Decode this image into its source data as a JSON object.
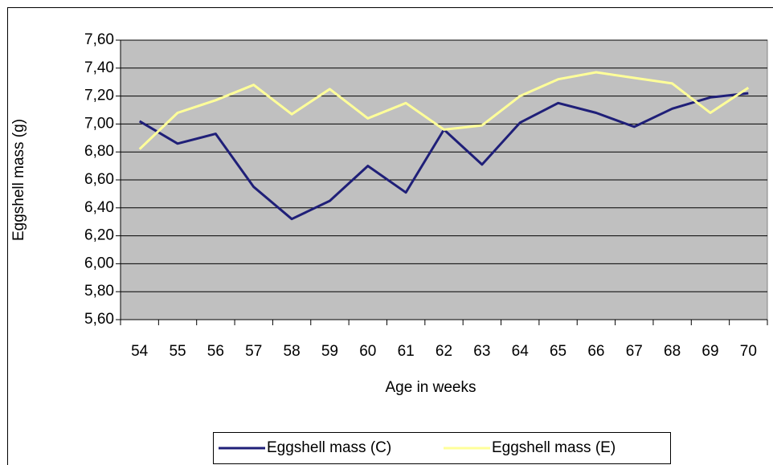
{
  "chart_data": {
    "type": "line",
    "categories": [
      "54",
      "55",
      "56",
      "57",
      "58",
      "59",
      "60",
      "61",
      "62",
      "63",
      "64",
      "65",
      "66",
      "67",
      "68",
      "69",
      "70"
    ],
    "series": [
      {
        "name": "Eggshell mass (C)",
        "color": "#1f1f78",
        "values": [
          7.02,
          6.86,
          6.93,
          6.55,
          6.32,
          6.45,
          6.7,
          6.51,
          6.96,
          6.71,
          7.01,
          7.15,
          7.08,
          6.98,
          7.11,
          7.19,
          7.22
        ]
      },
      {
        "name": "Eggshell mass (E)",
        "color": "#ffff99",
        "values": [
          6.82,
          7.08,
          7.17,
          7.28,
          7.07,
          7.25,
          7.04,
          7.15,
          6.96,
          6.99,
          7.2,
          7.32,
          7.37,
          7.33,
          7.29,
          7.08,
          7.26
        ]
      }
    ],
    "x_label": "Age in weeks",
    "y_label": "Eggshell mass (g)",
    "ylim": [
      5.6,
      7.6
    ],
    "yticks": [
      {
        "value": 5.6,
        "label": "5,60"
      },
      {
        "value": 5.8,
        "label": "5,80"
      },
      {
        "value": 6.0,
        "label": "6,00"
      },
      {
        "value": 6.2,
        "label": "6,20"
      },
      {
        "value": 6.4,
        "label": "6,40"
      },
      {
        "value": 6.6,
        "label": "6,60"
      },
      {
        "value": 6.8,
        "label": "6,80"
      },
      {
        "value": 7.0,
        "label": "7,00"
      },
      {
        "value": 7.2,
        "label": "7,20"
      },
      {
        "value": 7.4,
        "label": "7,40"
      },
      {
        "value": 7.6,
        "label": "7,60"
      }
    ],
    "grid": true,
    "plot_background": "#c0c0c0",
    "legend": "bottom"
  }
}
